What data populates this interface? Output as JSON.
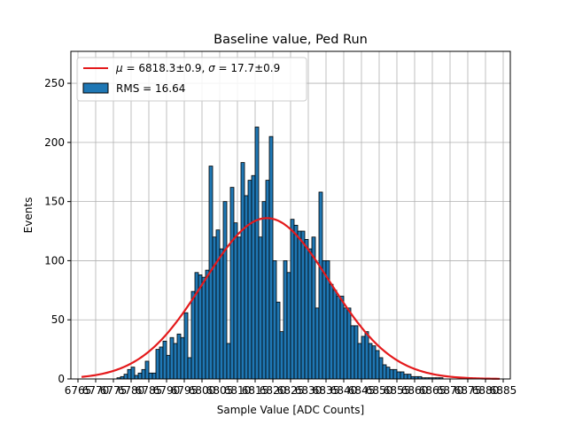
{
  "chart_data": {
    "type": "bar",
    "title": "Baseline value, Ped Run",
    "xlabel": "Sample Value [ADC Counts]",
    "ylabel": "Events",
    "xlim": [
      6763,
      6887
    ],
    "ylim": [
      0,
      277
    ],
    "xticks": [
      6765,
      6770,
      6775,
      6780,
      6785,
      6790,
      6795,
      6800,
      6805,
      6810,
      6815,
      6820,
      6825,
      6830,
      6835,
      6840,
      6845,
      6850,
      6855,
      6860,
      6865,
      6870,
      6875,
      6880,
      6885
    ],
    "xtick_labels": [
      "6765",
      "6770",
      "6775",
      "6780",
      "6785",
      "6790",
      "6795",
      "6800",
      "6805",
      "6810",
      "6815",
      "6820",
      "6825",
      "6830",
      "6835",
      "6840",
      "6845",
      "6850",
      "6855",
      "6860",
      "6865",
      "6870",
      "6875",
      "6880",
      "6885"
    ],
    "yticks": [
      0,
      50,
      100,
      150,
      200,
      250
    ],
    "ytick_labels": [
      "0",
      "50",
      "100",
      "150",
      "200",
      "250"
    ],
    "grid": true,
    "legend_position": "top-left",
    "bar_color": "#1f77b4",
    "fit_color": "#e41a1c",
    "histogram": {
      "name": "RMS = 16.64",
      "bin_edges": [
        6776.0,
        6777.0,
        6778.0,
        6779.0,
        6780.0,
        6781.0,
        6782.0,
        6783.0,
        6784.0,
        6785.0,
        6786.0,
        6787.0,
        6788.0,
        6789.0,
        6790.0,
        6791.0,
        6792.0,
        6793.0,
        6794.0,
        6795.0,
        6796.0,
        6797.0,
        6798.0,
        6799.0,
        6800.0,
        6801.0,
        6802.0,
        6803.0,
        6804.0,
        6805.0,
        6806.0,
        6807.0,
        6808.0,
        6809.0,
        6810.0,
        6811.0,
        6812.0,
        6813.0,
        6814.0,
        6815.0,
        6816.0,
        6817.0,
        6818.0,
        6819.0,
        6820.0,
        6821.0,
        6822.0,
        6823.0,
        6824.0,
        6825.0,
        6826.0,
        6827.0,
        6828.0,
        6829.0,
        6830.0,
        6831.0,
        6832.0,
        6833.0,
        6834.0,
        6835.0,
        6836.0,
        6837.0,
        6838.0,
        6839.0,
        6840.0,
        6841.0,
        6842.0,
        6843.0,
        6844.0,
        6845.0,
        6846.0,
        6847.0,
        6848.0,
        6849.0,
        6850.0,
        6851.0,
        6852.0,
        6853.0,
        6854.0,
        6855.0,
        6856.0,
        6857.0,
        6858.0,
        6859.0,
        6860.0,
        6861.0,
        6862.0,
        6863.0,
        6864.0,
        6865.0,
        6866.0,
        6867.0,
        6868.0
      ],
      "counts": [
        1,
        2,
        4,
        8,
        10,
        3,
        5,
        8,
        15,
        5,
        5,
        25,
        27,
        32,
        20,
        35,
        30,
        38,
        35,
        56,
        18,
        74,
        90,
        88,
        86,
        92,
        180,
        120,
        126,
        110,
        150,
        30,
        162,
        132,
        120,
        183,
        155,
        168,
        172,
        213,
        120,
        150,
        168,
        205,
        100,
        65,
        40,
        100,
        90,
        135,
        130,
        125,
        125,
        118,
        110,
        120,
        60,
        158,
        100,
        100,
        80,
        75,
        70,
        70,
        60,
        60,
        45,
        45,
        30,
        36,
        40,
        30,
        28,
        24,
        18,
        12,
        10,
        8,
        8,
        6,
        6,
        4,
        4,
        2,
        2,
        2,
        1,
        1,
        1,
        1,
        1,
        1
      ]
    },
    "fit": {
      "name": "$\\mu = 6818.3{\\pm}0.9$, $\\sigma = 17.7{\\pm}0.9$",
      "mu": 6818.3,
      "sigma": 17.7,
      "amplitude": 136,
      "x_range": [
        6766,
        6884
      ]
    }
  }
}
